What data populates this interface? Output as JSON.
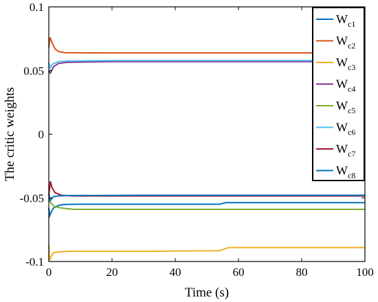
{
  "chart_data": {
    "type": "line",
    "xlabel": "Time (s)",
    "ylabel": "The critic weights",
    "xlim": [
      0,
      100
    ],
    "ylim": [
      -0.1,
      0.1
    ],
    "x_ticks": [
      "0",
      "20",
      "40",
      "60",
      "80",
      "100"
    ],
    "y_ticks": [
      "-0.1",
      "-0.05",
      "0",
      "0.05",
      "0.1"
    ],
    "grid": false,
    "legend_position": "top-right",
    "series": [
      {
        "name": "W",
        "sub": "c1",
        "color": "#0072BD",
        "points": [
          [
            0,
            -0.058
          ],
          [
            0.3,
            -0.064
          ],
          [
            0.8,
            -0.061
          ],
          [
            1.5,
            -0.058
          ],
          [
            3,
            -0.056
          ],
          [
            5,
            -0.0552
          ],
          [
            10,
            -0.055
          ],
          [
            30,
            -0.055
          ],
          [
            54,
            -0.055
          ],
          [
            56,
            -0.0538
          ],
          [
            70,
            -0.0538
          ],
          [
            100,
            -0.0538
          ]
        ]
      },
      {
        "name": "W",
        "sub": "c2",
        "color": "#D95319",
        "points": [
          [
            0,
            0.068
          ],
          [
            0.4,
            0.076
          ],
          [
            1,
            0.072
          ],
          [
            2,
            0.067
          ],
          [
            3,
            0.065
          ],
          [
            5,
            0.064
          ],
          [
            20,
            0.0638
          ],
          [
            60,
            0.0638
          ],
          [
            100,
            0.0638
          ]
        ]
      },
      {
        "name": "W",
        "sub": "c3",
        "color": "#EDB120",
        "points": [
          [
            0,
            -0.087
          ],
          [
            0.3,
            -0.099
          ],
          [
            0.8,
            -0.096
          ],
          [
            1.5,
            -0.093
          ],
          [
            3,
            -0.0925
          ],
          [
            6,
            -0.092
          ],
          [
            30,
            -0.092
          ],
          [
            54,
            -0.0915
          ],
          [
            57,
            -0.089
          ],
          [
            100,
            -0.089
          ]
        ]
      },
      {
        "name": "W",
        "sub": "c4",
        "color": "#7E2F8E",
        "points": [
          [
            0,
            0.05
          ],
          [
            0.5,
            0.048
          ],
          [
            1.5,
            0.053
          ],
          [
            3,
            0.0555
          ],
          [
            6,
            0.0565
          ],
          [
            20,
            0.057
          ],
          [
            100,
            0.057
          ]
        ]
      },
      {
        "name": "W",
        "sub": "c5",
        "color": "#77AC30",
        "points": [
          [
            0,
            -0.05
          ],
          [
            0.4,
            -0.053
          ],
          [
            1,
            -0.055
          ],
          [
            2,
            -0.057
          ],
          [
            4,
            -0.058
          ],
          [
            8,
            -0.059
          ],
          [
            100,
            -0.059
          ]
        ]
      },
      {
        "name": "W",
        "sub": "c6",
        "color": "#4DBEEE",
        "points": [
          [
            0,
            0.056
          ],
          [
            0.4,
            0.052
          ],
          [
            1.2,
            0.055
          ],
          [
            3,
            0.057
          ],
          [
            6,
            0.0575
          ],
          [
            20,
            0.0578
          ],
          [
            100,
            0.0578
          ]
        ]
      },
      {
        "name": "W",
        "sub": "c7",
        "color": "#A2142F",
        "points": [
          [
            0,
            -0.048
          ],
          [
            0.5,
            -0.037
          ],
          [
            1,
            -0.042
          ],
          [
            2,
            -0.046
          ],
          [
            4,
            -0.048
          ],
          [
            8,
            -0.0485
          ],
          [
            100,
            -0.0485
          ]
        ]
      },
      {
        "name": "W",
        "sub": "c8",
        "color": "#0072BD",
        "points": [
          [
            0,
            -0.047
          ],
          [
            0.5,
            -0.052
          ],
          [
            1.5,
            -0.049
          ],
          [
            3,
            -0.0485
          ],
          [
            6,
            -0.0482
          ],
          [
            30,
            -0.048
          ],
          [
            100,
            -0.048
          ]
        ]
      }
    ]
  }
}
